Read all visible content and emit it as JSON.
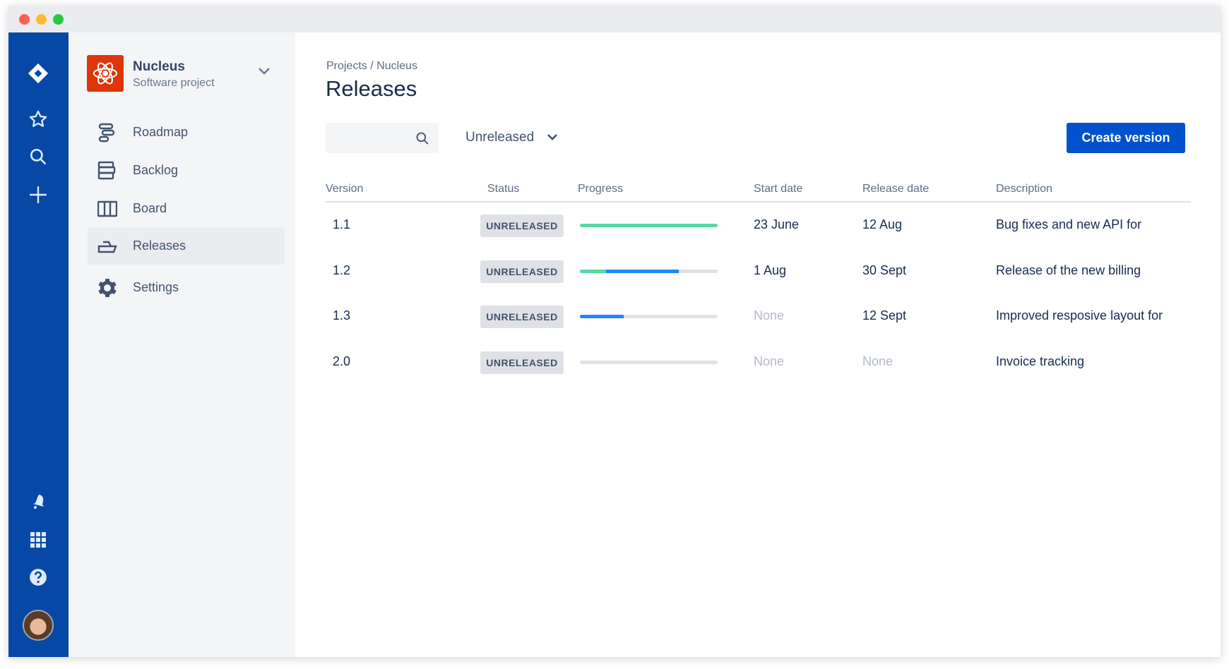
{
  "window": {
    "controls": [
      "close",
      "minimize",
      "maximize"
    ]
  },
  "global_nav": {
    "top_icons": [
      "jira-logo-icon",
      "star-icon",
      "search-icon",
      "plus-icon"
    ],
    "bottom_icons": [
      "notification-bell-icon",
      "app-switcher-grid-icon",
      "help-icon",
      "avatar"
    ]
  },
  "project": {
    "name": "Nucleus",
    "type": "Software project",
    "icon": "atom-icon",
    "color": "#de350b"
  },
  "sidebar": {
    "items": [
      {
        "label": "Roadmap",
        "icon": "roadmap-icon"
      },
      {
        "label": "Backlog",
        "icon": "backlog-icon"
      },
      {
        "label": "Board",
        "icon": "board-icon"
      },
      {
        "label": "Releases",
        "icon": "ship-icon",
        "active": true
      },
      {
        "label": "Settings",
        "icon": "gear-icon"
      }
    ]
  },
  "header": {
    "breadcrumb": "Projects / Nucleus",
    "title": "Releases"
  },
  "toolbar": {
    "search_value": "",
    "filter_value": "Unreleased",
    "create_label": "Create version"
  },
  "colors": {
    "accent": "#0052cc",
    "nav": "#0747a6",
    "done": "#57d9a3",
    "in_progress": "#2684ff",
    "todo": "#dfe1e6"
  },
  "table": {
    "columns": [
      "Version",
      "Status",
      "Progress",
      "Start date",
      "Release date",
      "Description"
    ],
    "rows": [
      {
        "version": "1.1",
        "status": "UNRELEASED",
        "progress": {
          "done": 100,
          "in_progress": 0
        },
        "start": "23 June",
        "release": "12 Aug",
        "description": "Bug fixes and new API for"
      },
      {
        "version": "1.2",
        "status": "UNRELEASED",
        "progress": {
          "done": 19,
          "in_progress": 53
        },
        "start": "1 Aug",
        "release": "30 Sept",
        "description": "Release of the new billing"
      },
      {
        "version": "1.3",
        "status": "UNRELEASED",
        "progress": {
          "done": 0,
          "in_progress": 32
        },
        "start": "None",
        "release": "12 Sept",
        "description": "Improved resposive layout for"
      },
      {
        "version": "2.0",
        "status": "UNRELEASED",
        "progress": {
          "done": 0,
          "in_progress": 0
        },
        "start": "None",
        "release": "None",
        "description": "Invoice tracking"
      }
    ]
  }
}
